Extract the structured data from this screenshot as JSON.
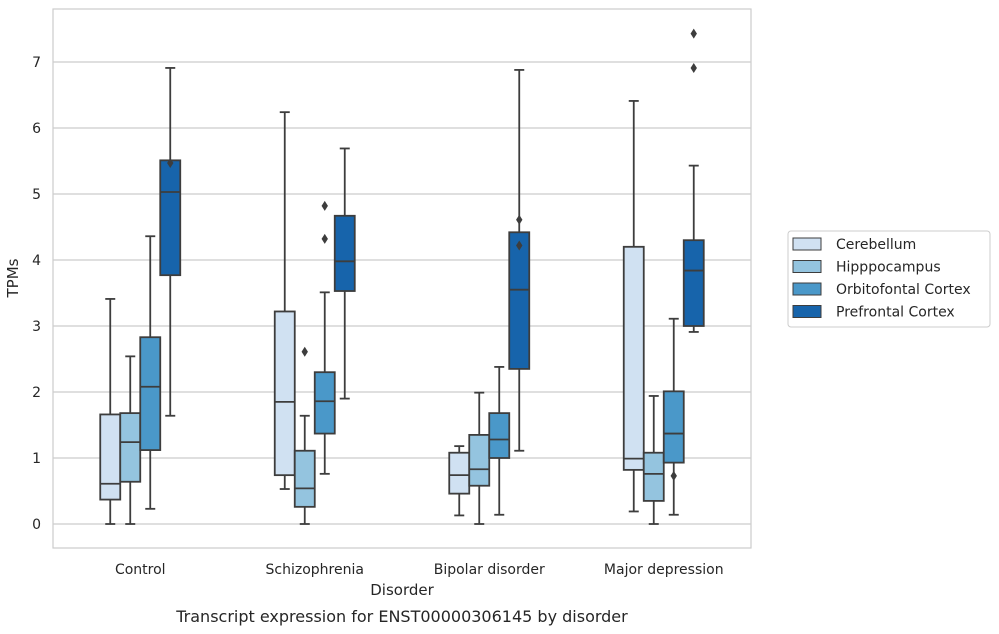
{
  "chart_data": {
    "type": "box",
    "title": "",
    "caption": "Transcript expression for ENST00000306145 by disorder",
    "xlabel": "Disorder",
    "ylabel": "TPMs",
    "ylim": [
      -0.35,
      7.8
    ],
    "yticks": [
      0,
      1,
      2,
      3,
      4,
      5,
      6,
      7
    ],
    "categories": [
      "Control",
      "Schizophrenia",
      "Bipolar disorder",
      "Major depression"
    ],
    "grid": "horizontal",
    "legend_position": "right",
    "series": [
      {
        "name": "Cerebellum",
        "color": "#d0e1f2",
        "boxes": [
          {
            "whislo": 0.0,
            "q1": 0.37,
            "med": 0.61,
            "q3": 1.66,
            "whishi": 3.41,
            "fliers": []
          },
          {
            "whislo": 0.53,
            "q1": 0.74,
            "med": 1.85,
            "q3": 3.22,
            "whishi": 6.24,
            "fliers": []
          },
          {
            "whislo": 0.13,
            "q1": 0.46,
            "med": 0.74,
            "q3": 1.08,
            "whishi": 1.18,
            "fliers": []
          },
          {
            "whislo": 0.19,
            "q1": 0.82,
            "med": 0.99,
            "q3": 4.2,
            "whishi": 6.41,
            "fliers": []
          }
        ]
      },
      {
        "name": "Hipppocampus",
        "color": "#94c4df",
        "boxes": [
          {
            "whislo": 0.0,
            "q1": 0.64,
            "med": 1.24,
            "q3": 1.68,
            "whishi": 2.54,
            "fliers": []
          },
          {
            "whislo": 0.0,
            "q1": 0.26,
            "med": 0.54,
            "q3": 1.11,
            "whishi": 1.64,
            "fliers": [
              2.61
            ]
          },
          {
            "whislo": 0.0,
            "q1": 0.58,
            "med": 0.83,
            "q3": 1.35,
            "whishi": 1.99,
            "fliers": []
          },
          {
            "whislo": 0.0,
            "q1": 0.35,
            "med": 0.76,
            "q3": 1.08,
            "whishi": 1.94,
            "fliers": []
          }
        ]
      },
      {
        "name": "Orbitofontal Cortex",
        "color": "#4a98c9",
        "boxes": [
          {
            "whislo": 0.23,
            "q1": 1.12,
            "med": 2.08,
            "q3": 2.83,
            "whishi": 4.36,
            "fliers": []
          },
          {
            "whislo": 0.76,
            "q1": 1.37,
            "med": 1.86,
            "q3": 2.3,
            "whishi": 3.51,
            "fliers": [
              4.32,
              4.82
            ]
          },
          {
            "whislo": 0.14,
            "q1": 1.0,
            "med": 1.28,
            "q3": 1.68,
            "whishi": 2.38,
            "fliers": []
          },
          {
            "whislo": 0.14,
            "q1": 0.93,
            "med": 1.37,
            "q3": 2.01,
            "whishi": 3.11,
            "fliers": [
              0.73
            ]
          }
        ]
      },
      {
        "name": "Prefrontal Cortex",
        "color": "#1764ab",
        "boxes": [
          {
            "whislo": 1.64,
            "q1": 3.77,
            "med": 5.03,
            "q3": 5.51,
            "whishi": 6.91,
            "fliers": [
              5.47
            ]
          },
          {
            "whislo": 1.9,
            "q1": 3.53,
            "med": 3.98,
            "q3": 4.67,
            "whishi": 5.69,
            "fliers": []
          },
          {
            "whislo": 1.11,
            "q1": 2.35,
            "med": 3.55,
            "q3": 4.42,
            "whishi": 6.88,
            "fliers": [
              4.22,
              4.61
            ]
          },
          {
            "whislo": 2.91,
            "q1": 3.0,
            "med": 3.84,
            "q3": 4.3,
            "whishi": 5.43,
            "fliers": [
              6.91,
              7.43
            ]
          }
        ]
      }
    ]
  }
}
